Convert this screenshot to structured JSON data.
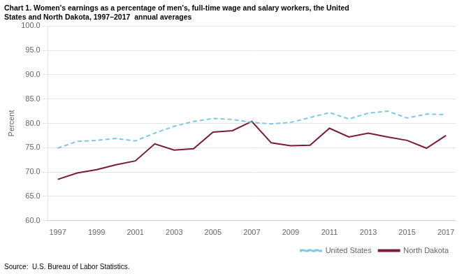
{
  "chart_data": {
    "type": "line",
    "title": [
      "Chart 1. Women's earnings as a percentage of men's, full-time wage and salary workers, the United",
      "States and North Dakota, 1997–2017  annual averages"
    ],
    "ylabel": "Percent",
    "annotations": [
      "Source:  U.S. Bureau of Labor Statistics."
    ],
    "x": [
      1997,
      1998,
      1999,
      2000,
      2001,
      2002,
      2003,
      2004,
      2005,
      2006,
      2007,
      2008,
      2009,
      2010,
      2011,
      2012,
      2013,
      2014,
      2015,
      2016,
      2017
    ],
    "series": [
      {
        "name": "United States",
        "color": "#7ec8e3",
        "line_style": "dashed",
        "values": [
          74.9,
          76.3,
          76.5,
          76.9,
          76.4,
          78.0,
          79.4,
          80.4,
          81.0,
          80.8,
          80.2,
          79.9,
          80.2,
          81.2,
          82.2,
          80.9,
          82.1,
          82.5,
          81.1,
          81.9,
          81.8
        ]
      },
      {
        "name": "North Dakota",
        "color": "#7b1a3c",
        "line_style": "solid",
        "values": [
          68.5,
          69.8,
          70.5,
          71.5,
          72.3,
          75.8,
          74.5,
          74.8,
          78.2,
          78.5,
          80.4,
          76.0,
          75.4,
          75.5,
          79.0,
          77.2,
          78.0,
          77.2,
          76.5,
          74.9,
          77.5
        ]
      }
    ],
    "xlim": [
      1996.5,
      2017.5
    ],
    "xticks": [
      1997,
      1999,
      2001,
      2003,
      2005,
      2007,
      2009,
      2011,
      2013,
      2015,
      2017
    ],
    "ylim": [
      60.0,
      100.0
    ],
    "yticks": [
      {
        "value": 60,
        "label": "60.0"
      },
      {
        "value": 65,
        "label": "65.0"
      },
      {
        "value": 70,
        "label": "70.0"
      },
      {
        "value": 75,
        "label": "75.0"
      },
      {
        "value": 80,
        "label": "80.0"
      },
      {
        "value": 85,
        "label": "85.0"
      },
      {
        "value": 90,
        "label": "90.0"
      },
      {
        "value": 95,
        "label": "95.0"
      },
      {
        "value": 100,
        "label": "100.0"
      }
    ],
    "grid": "y",
    "legend": "lower right"
  }
}
